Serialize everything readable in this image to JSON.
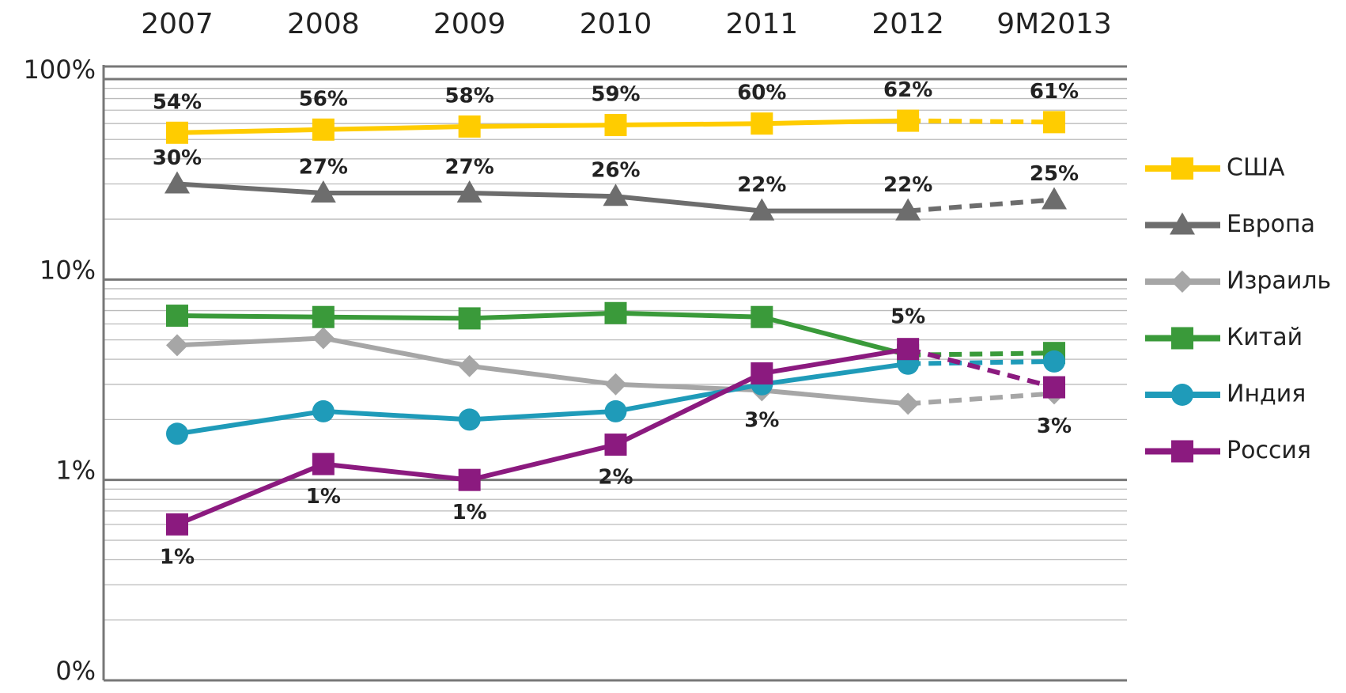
{
  "chart_data": {
    "type": "line",
    "categories": [
      "2007",
      "2008",
      "2009",
      "2010",
      "2011",
      "2012",
      "9M2013"
    ],
    "log_scale": true,
    "ylim": [
      0.1,
      100
    ],
    "yticks": [
      {
        "value": 0.1,
        "label": "0%"
      },
      {
        "value": 1,
        "label": "1%"
      },
      {
        "value": 10,
        "label": "10%"
      },
      {
        "value": 100,
        "label": "100%"
      }
    ],
    "grid": true,
    "minor_grid": true,
    "legend": "right",
    "dashed_last": true,
    "series": [
      {
        "name": "США",
        "color": "#ffcc00",
        "marker": "square",
        "values": [
          54,
          56,
          58,
          59,
          60,
          62,
          61
        ],
        "value_labels": [
          "54%",
          "56%",
          "58%",
          "59%",
          "60%",
          "62%",
          "61%"
        ]
      },
      {
        "name": "Европа",
        "color": "#6d6d6d",
        "marker": "triangle",
        "values": [
          30,
          27,
          27,
          26,
          22,
          22,
          25
        ],
        "value_labels": [
          "30%",
          "27%",
          "27%",
          "26%",
          "22%",
          "22%",
          "25%"
        ]
      },
      {
        "name": "Израиль",
        "color": "#a6a6a6",
        "marker": "diamond",
        "values": [
          4.7,
          5.1,
          3.7,
          3.0,
          2.8,
          2.4,
          2.7
        ],
        "value_labels": [
          null,
          null,
          null,
          null,
          null,
          null,
          "3%"
        ]
      },
      {
        "name": "Китай",
        "color": "#3a9a3a",
        "marker": "square",
        "values": [
          6.6,
          6.5,
          6.4,
          6.8,
          6.5,
          4.2,
          4.3
        ]
      },
      {
        "name": "Индия",
        "color": "#1f9bb9",
        "marker": "circle",
        "values": [
          1.7,
          2.2,
          2.0,
          2.2,
          3.0,
          3.8,
          3.9
        ]
      },
      {
        "name": "Россия",
        "color": "#8b1a7f",
        "marker": "square",
        "values": [
          0.6,
          1.2,
          1.0,
          1.5,
          3.4,
          4.5,
          2.9
        ],
        "value_labels": [
          "1%",
          "1%",
          "1%",
          "2%",
          "3%",
          "5%",
          null
        ]
      }
    ]
  }
}
